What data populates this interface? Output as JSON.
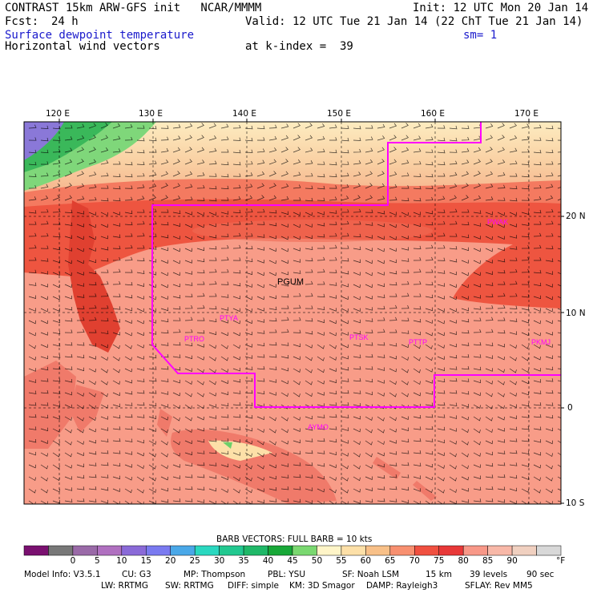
{
  "header": {
    "title": "CONTRAST 15km ARW-GFS init   NCAR/MMMM",
    "init": "Init: 12 UTC Mon 20 Jan 14",
    "fcst_label": "Fcst:",
    "fcst_value": "24 h",
    "valid": "Valid: 12 UTC Tue 21 Jan 14 (22 ChT Tue 21 Jan 14)",
    "field1": "Surface dewpoint temperature",
    "sm": "sm= 1",
    "field2": "Horizontal wind vectors",
    "kindex": "at k-index =  39"
  },
  "axes": {
    "lon_labels": [
      "120 E",
      "130 E",
      "140 E",
      "150 E",
      "160 E",
      "170 E"
    ],
    "lat_labels": [
      "20 N",
      "10 N",
      "0",
      "10 S"
    ]
  },
  "stations": [
    "PGUM",
    "PTYA",
    "PTRO",
    "PTSK",
    "PTTP",
    "PKMJ",
    "PWAK",
    "AYMO"
  ],
  "colorbar": {
    "title": "BARB VECTORS:  FULL BARB = 10 kts",
    "ticks": [
      "0",
      "5",
      "10",
      "15",
      "20",
      "25",
      "30",
      "35",
      "40",
      "45",
      "50",
      "55",
      "60",
      "65",
      "70",
      "75",
      "80",
      "85",
      "90"
    ],
    "unit": "°F",
    "colors": [
      "#7a1070",
      "#787878",
      "#9a6aa8",
      "#b070c0",
      "#8a6ad8",
      "#7a7af0",
      "#4aa8e8",
      "#2ad8c0",
      "#22c890",
      "#20b868",
      "#18a838",
      "#7ad870",
      "#fff5c8",
      "#fde0a8",
      "#f8c088",
      "#f89070",
      "#f05040",
      "#e83838",
      "#f89888",
      "#f8b8a8",
      "#f0d0c0",
      "#d8d8d8"
    ]
  },
  "footer": {
    "line1": [
      "Model Info: V3.5.1",
      "CU: G3",
      "MP: Thompson",
      "PBL: YSU",
      "SF: Noah LSM",
      "15 km",
      "39 levels",
      "90 sec"
    ],
    "line2": [
      "LW: RRTMG",
      "SW: RRTMG",
      "DIFF: simple",
      "KM: 3D Smagor",
      "DAMP: Rayleigh3",
      "SFLAY: Rev MM5"
    ]
  },
  "map_colors": {
    "ocean_warm": "#f89c88",
    "moist_band": "#ee5540",
    "transition": "#f7c29a",
    "dry_north": "#fdecc0",
    "green": "#6dd06a",
    "purple": "#8a78d8",
    "boundary": "#ff00ff",
    "land_dark": "#e04030"
  }
}
